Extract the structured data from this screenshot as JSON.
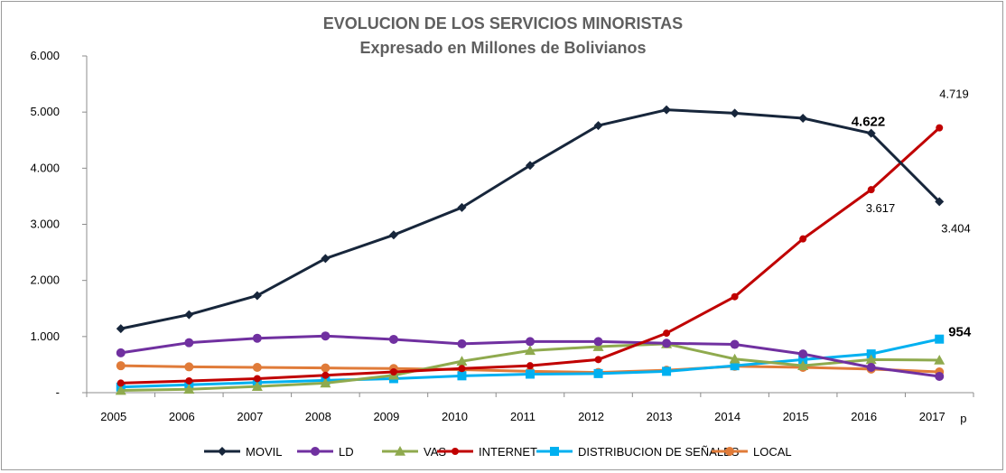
{
  "chart_data": {
    "type": "line",
    "title": "EVOLUCION DE LOS SERVICIOS MINORISTAS",
    "subtitle": "Expresado en Millones de Bolivianos",
    "x": [
      "2005",
      "2006",
      "2007",
      "2008",
      "2009",
      "2010",
      "2011",
      "2012",
      "2013",
      "2014",
      "2015",
      "2016",
      "2017"
    ],
    "x_suffix_note": "p",
    "y_tick_labels": [
      "-",
      "1.000",
      "2.000",
      "3.000",
      "4.000",
      "5.000",
      "6.000"
    ],
    "ylim": [
      0,
      6000
    ],
    "grid": false,
    "legend_position": "bottom",
    "series": [
      {
        "name": "MOVIL",
        "color": "#17263b",
        "marker": "diamond",
        "values": [
          1140,
          1390,
          1730,
          2390,
          2810,
          3300,
          4050,
          4760,
          5040,
          4980,
          4890,
          4622,
          3404
        ]
      },
      {
        "name": "LD",
        "color": "#7030a0",
        "marker": "circle",
        "values": [
          710,
          890,
          970,
          1010,
          950,
          870,
          910,
          910,
          880,
          860,
          690,
          450,
          290
        ]
      },
      {
        "name": "VAS",
        "color": "#8faa4e",
        "marker": "triangle",
        "values": [
          40,
          60,
          110,
          170,
          310,
          560,
          750,
          820,
          870,
          600,
          480,
          590,
          580
        ]
      },
      {
        "name": "INTERNET",
        "color": "#c00000",
        "marker": "circle-small",
        "values": [
          170,
          210,
          250,
          310,
          370,
          430,
          480,
          590,
          1060,
          1710,
          2740,
          3617,
          4719
        ]
      },
      {
        "name": "DISTRIBUCION  DE SEÑALES",
        "color": "#00b0f0",
        "marker": "square",
        "values": [
          100,
          140,
          180,
          220,
          250,
          300,
          330,
          340,
          380,
          480,
          590,
          690,
          954
        ]
      },
      {
        "name": "LOCAL",
        "color": "#e07b39",
        "marker": "circle",
        "values": [
          480,
          460,
          450,
          440,
          430,
          410,
          380,
          360,
          400,
          470,
          450,
          420,
          370
        ]
      }
    ],
    "data_labels": [
      {
        "text": "4.622",
        "series": "MOVIL",
        "index": 11,
        "color": "#17375e",
        "style": "bold"
      },
      {
        "text": "3.404",
        "series": "MOVIL",
        "index": 12,
        "color": "#000000",
        "style": "normal"
      },
      {
        "text": "4.719",
        "series": "INTERNET",
        "index": 12,
        "color": "#000000",
        "style": "normal"
      },
      {
        "text": "3.617",
        "series": "INTERNET",
        "index": 11,
        "color": "#000000",
        "style": "normal"
      },
      {
        "text": "954",
        "series": "DISTRIBUCION  DE SEÑALES",
        "index": 12,
        "color": "#00b0f0",
        "style": "bold"
      }
    ]
  }
}
